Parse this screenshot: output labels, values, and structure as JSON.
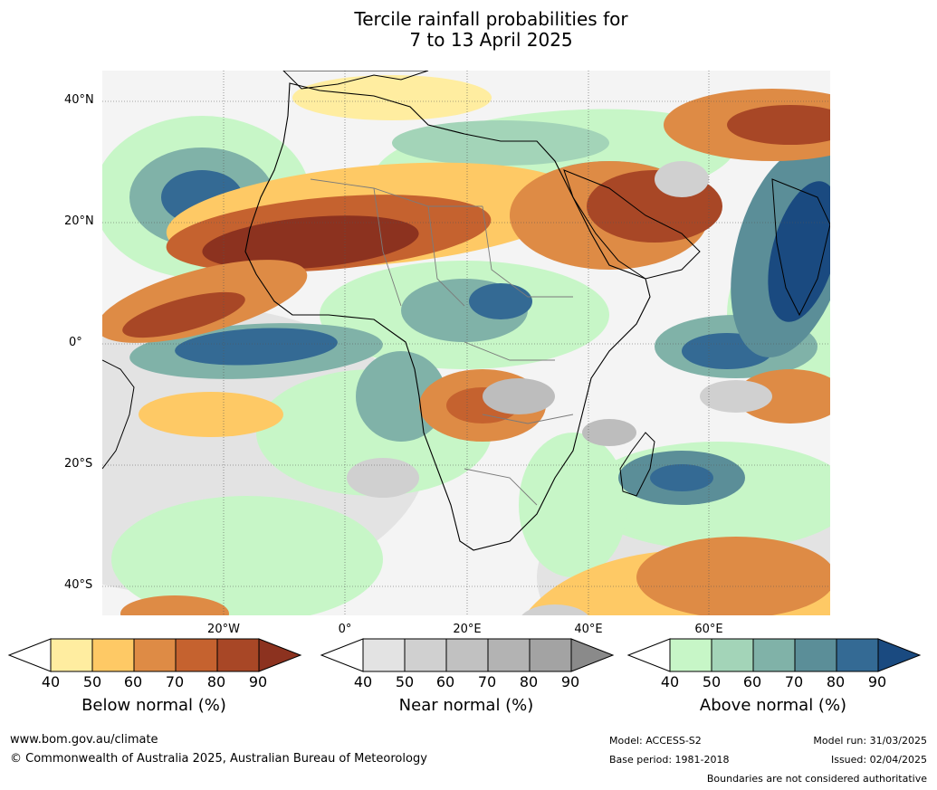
{
  "title": {
    "line1": "Tercile rainfall probabilities for",
    "line2": "7 to 13 April 2025"
  },
  "map": {
    "lat_labels": [
      "40°N",
      "20°N",
      "0°",
      "20°S",
      "40°S"
    ],
    "lon_labels": [
      "20°W",
      "0°",
      "20°E",
      "40°E",
      "60°E"
    ],
    "colors": {
      "below": [
        "#ffeda0",
        "#fec965",
        "#de8b45",
        "#c5622f",
        "#a84726",
        "#8c321f"
      ],
      "near": [
        "#e3e3e3",
        "#d0d0d0",
        "#bdbdbd",
        "#a8a8a8",
        "#909090"
      ],
      "above": [
        "#c7f6c7",
        "#a3d4b8",
        "#80b2a8",
        "#5b8e98",
        "#346a94",
        "#1a4a80"
      ],
      "ocean_base": "#f4f4f4",
      "coast": "#000000",
      "borders": "#7b7b7b"
    }
  },
  "colorbars": {
    "below": {
      "label": "Below normal (%)",
      "ticks": [
        "40",
        "50",
        "60",
        "70",
        "80",
        "90"
      ],
      "colors": [
        "#ffffff",
        "#ffeda0",
        "#fec965",
        "#de8b45",
        "#c5622f",
        "#a84726",
        "#8c321f"
      ]
    },
    "near": {
      "label": "Near normal (%)",
      "ticks": [
        "40",
        "50",
        "60",
        "70",
        "80",
        "90"
      ],
      "colors": [
        "#ffffff",
        "#e3e3e3",
        "#d0d0d0",
        "#c1c1c1",
        "#b3b3b3",
        "#a3a3a3",
        "#8a8a8a"
      ]
    },
    "above": {
      "label": "Above normal (%)",
      "ticks": [
        "40",
        "50",
        "60",
        "70",
        "80",
        "90"
      ],
      "colors": [
        "#ffffff",
        "#c7f6c7",
        "#a3d4b8",
        "#80b2a8",
        "#5b8e98",
        "#346a94",
        "#1a4a80"
      ]
    }
  },
  "footer": {
    "website": "www.bom.gov.au/climate",
    "copyright": "© Commonwealth of Australia 2025, Australian Bureau of Meteorology",
    "model": "Model: ACCESS-S2",
    "base_period": "Base period: 1981-2018",
    "model_run": "Model run: 31/03/2025",
    "issued": "Issued: 02/04/2025",
    "boundaries_note": "Boundaries are not considered authoritative"
  }
}
